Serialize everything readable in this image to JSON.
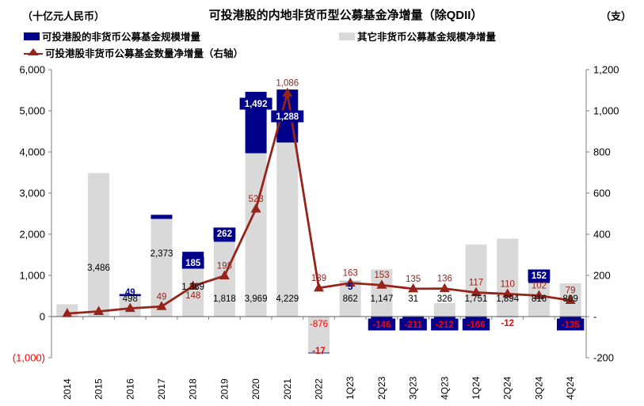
{
  "header": {
    "left_unit": "（十亿元人民币）",
    "title": "可投港股的内地非货币型公募基金净增量（除QDII）",
    "right_unit": "（支）"
  },
  "legend": {
    "items": [
      {
        "label": "可投港股的非货币公募基金规模增量",
        "swatch": "square",
        "color": "#00008B"
      },
      {
        "label": "其它非货币公募基金规模净增量",
        "swatch": "square",
        "color": "#D9D9D9"
      },
      {
        "label": "可投港股非货币公募基金数量净增量（右轴）",
        "swatch": "line-triangle",
        "color": "#96241B"
      }
    ]
  },
  "chart_data": {
    "type": "bar",
    "subtype": "stacked-bar-with-line",
    "title": "可投港股的内地非货币型公募基金净增量（除QDII）",
    "ylabel_left": "（十亿元人民币）",
    "ylabel_right": "（支）",
    "grid": false,
    "legend_position": "top-left",
    "categories": [
      "2014",
      "2015",
      "2016",
      "2017",
      "2018",
      "2019",
      "2020",
      "2021",
      "2022",
      "1Q23",
      "2Q23",
      "3Q23",
      "4Q23",
      "1Q24",
      "2Q24",
      "3Q24",
      "4Q24"
    ],
    "series": [
      {
        "name": "可投港股的非货币公募基金规模增量",
        "type": "bar",
        "stack": "scale",
        "axis": "left",
        "color": "#00008B",
        "values": [
          0,
          0,
          49,
          100,
          185,
          262,
          1492,
          1288,
          -17,
          5,
          -146,
          -211,
          -212,
          -166,
          -12,
          152,
          -135
        ],
        "labels": [
          "",
          "",
          "49",
          "",
          "185",
          "262",
          "1,492",
          "1,288",
          "-17",
          "5",
          "-146",
          "-211",
          "-212",
          "-166",
          "-12",
          "152",
          "-135"
        ],
        "label_styles": [
          "",
          "",
          "plain-navy",
          "",
          "badge",
          "badge",
          "badge",
          "badge",
          "plain-red",
          "plain-navy",
          "badge-neg",
          "badge-neg",
          "badge-neg",
          "badge-neg",
          "plain-red",
          "badge",
          "badge-neg"
        ],
        "label_y_hints": [
          null,
          null,
          369,
          null,
          332,
          295,
          131,
          147,
          443,
          362,
          410,
          410,
          410,
          410,
          408,
          348,
          410
        ]
      },
      {
        "name": "其它非货币公募基金规模净增量",
        "type": "bar",
        "stack": "scale",
        "axis": "left",
        "color": "#D9D9D9",
        "values": [
          300,
          3486,
          498,
          2373,
          1389,
          1818,
          3969,
          4229,
          -876,
          862,
          1147,
          31,
          326,
          1751,
          1894,
          816,
          809
        ],
        "labels": [
          "",
          "3,486",
          "498",
          "2,373",
          "1,389",
          "1,818",
          "3,969",
          "4,229",
          "-876",
          "862",
          "1,147",
          "31",
          "326",
          "1,751",
          "1,894",
          "816",
          "809"
        ],
        "label_y_hints": [
          null,
          338,
          377,
          320,
          362,
          377,
          377,
          377,
          409,
          377,
          377,
          377,
          377,
          377,
          377,
          377,
          377
        ]
      },
      {
        "name": "可投港股非货币公募基金数量净增量（右轴）",
        "type": "line",
        "axis": "right",
        "color": "#96241B",
        "values": [
          15,
          25,
          40,
          49,
          148,
          198,
          523,
          1086,
          139,
          163,
          153,
          135,
          136,
          117,
          110,
          102,
          79
        ],
        "labels": [
          "",
          "",
          "",
          "49",
          "148",
          "198",
          "523",
          "1,086",
          "139",
          "163",
          "153",
          "135",
          "136",
          "117",
          "110",
          "102",
          "79"
        ],
        "label_y_hints": [
          null,
          null,
          null,
          null,
          373,
          null,
          null,
          null,
          null,
          null,
          null,
          null,
          null,
          null,
          null,
          null,
          null
        ]
      }
    ],
    "left_axis": {
      "min": -1000,
      "max": 6000,
      "tick_step": 1000,
      "ticks": [
        "6,000",
        "5,000",
        "4,000",
        "3,000",
        "2,000",
        "1,000",
        "0",
        "(1,000)"
      ],
      "negative_tick_color": "#FF0000"
    },
    "right_axis": {
      "min": -200,
      "max": 1200,
      "tick_step": 200,
      "ticks": [
        "1,200",
        "1,000",
        "800",
        "600",
        "400",
        "200",
        "-",
        "-200"
      ]
    },
    "colors": {
      "navy": "#00008B",
      "gray_bar": "#D9D9D9",
      "line_red": "#96241B",
      "neg_label_red": "#FF0000",
      "axis": "#7F7F7F",
      "text": "#000000",
      "badge_text": "#FFFFFF"
    }
  }
}
